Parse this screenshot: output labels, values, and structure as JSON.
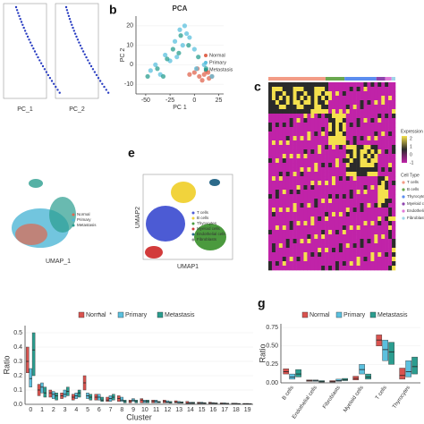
{
  "panel_labels": [
    "b",
    "c",
    "e",
    "g"
  ],
  "loadings": {
    "xlabels": [
      "PC_1",
      "PC_2"
    ]
  },
  "umap_left": {
    "xlabel": "UMAP_1",
    "legend": [
      "Normal",
      "Primary",
      "Metastasis"
    ]
  },
  "umap_right": {
    "xlabel": "UMAP1",
    "ylabel": "UMAP2",
    "legend": [
      "T cells",
      "B cells",
      "Thyrocytes",
      "Myeloid cells",
      "Endothelial cells",
      "Fibroblasts"
    ]
  },
  "heatmap": {
    "legend_title": "Expression",
    "scale": [
      2,
      1,
      0,
      -1
    ],
    "group_title": "Cell Type",
    "groups": [
      "T cells",
      "B cells",
      "Thyrocytes",
      "Myeloid cells",
      "Endothelial cells",
      "Fibroblasts"
    ]
  },
  "chart_data": [
    {
      "type": "scatter",
      "title": "PCA",
      "xlabel": "PC 1",
      "ylabel": "PC 2",
      "xlim": [
        -60,
        30
      ],
      "ylim": [
        -15,
        25
      ],
      "xticks": [
        -50,
        -25,
        0,
        25
      ],
      "yticks": [
        -10,
        0,
        10,
        20
      ],
      "series": [
        {
          "name": "Normal",
          "color": "#e0664f",
          "x": [
            5,
            10,
            15,
            0,
            12,
            8,
            18,
            -5,
            3,
            14
          ],
          "y": [
            -6,
            -5,
            -7,
            -4,
            -3,
            -8,
            -6,
            -5,
            -2,
            -4
          ]
        },
        {
          "name": "Primary",
          "color": "#5bc0de",
          "x": [
            -45,
            -40,
            -30,
            -20,
            -15,
            -10,
            -5,
            0,
            10,
            18,
            -25,
            -35,
            -12,
            -18,
            2,
            -8
          ],
          "y": [
            -3,
            0,
            5,
            12,
            18,
            20,
            14,
            8,
            0,
            -6,
            2,
            -5,
            10,
            4,
            -2,
            16
          ]
        },
        {
          "name": "Metastasis",
          "color": "#2a9d8f",
          "x": [
            -48,
            -38,
            -28,
            -22,
            -14,
            -6,
            4,
            12,
            -32,
            -16
          ],
          "y": [
            -6,
            -2,
            3,
            8,
            15,
            10,
            4,
            -2,
            -6,
            6
          ]
        }
      ]
    },
    {
      "type": "box",
      "xlabel": "Cluster",
      "ylabel": "Ratio",
      "annotations": [
        "*",
        "*"
      ],
      "categories": [
        "0",
        "1",
        "2",
        "3",
        "4",
        "5",
        "6",
        "7",
        "8",
        "9",
        "10",
        "11",
        "12",
        "13",
        "14",
        "15",
        "16",
        "17",
        "18",
        "19"
      ],
      "ylim": [
        0,
        0.55
      ],
      "yticks": [
        {
          "value": 0,
          "label": "0.0"
        },
        0.1,
        0.2,
        0.3,
        0.4,
        0.5
      ],
      "series": [
        {
          "name": "Normal",
          "color": "#d9534f",
          "q1": [
            0.22,
            0.06,
            0.05,
            0.04,
            0.03,
            0.1,
            0.03,
            0.02,
            0.02,
            0.01,
            0.01,
            0.01,
            0.01,
            0.01,
            0.005,
            0.005,
            0.005,
            0.003,
            0.003,
            0.002
          ],
          "median": [
            0.3,
            0.1,
            0.08,
            0.06,
            0.05,
            0.15,
            0.05,
            0.03,
            0.04,
            0.02,
            0.03,
            0.02,
            0.02,
            0.015,
            0.01,
            0.01,
            0.01,
            0.006,
            0.005,
            0.004
          ],
          "q3": [
            0.4,
            0.14,
            0.1,
            0.08,
            0.07,
            0.2,
            0.07,
            0.05,
            0.06,
            0.03,
            0.04,
            0.03,
            0.03,
            0.025,
            0.02,
            0.015,
            0.015,
            0.01,
            0.008,
            0.006
          ]
        },
        {
          "name": "Primary",
          "color": "#5bc0de",
          "q1": [
            0.12,
            0.08,
            0.04,
            0.05,
            0.04,
            0.04,
            0.03,
            0.02,
            0.02,
            0.02,
            0.01,
            0.01,
            0.01,
            0.008,
            0.005,
            0.005,
            0.005,
            0.003,
            0.003,
            0.002
          ],
          "median": [
            0.18,
            0.12,
            0.07,
            0.07,
            0.06,
            0.06,
            0.05,
            0.04,
            0.03,
            0.03,
            0.02,
            0.02,
            0.015,
            0.012,
            0.01,
            0.01,
            0.008,
            0.006,
            0.005,
            0.004
          ],
          "q3": [
            0.25,
            0.15,
            0.09,
            0.1,
            0.08,
            0.08,
            0.07,
            0.06,
            0.05,
            0.04,
            0.03,
            0.03,
            0.025,
            0.02,
            0.015,
            0.015,
            0.012,
            0.01,
            0.008,
            0.006
          ]
        },
        {
          "name": "Metastasis",
          "color": "#2a9d8f",
          "q1": [
            0.2,
            0.05,
            0.03,
            0.06,
            0.05,
            0.03,
            0.02,
            0.03,
            0.01,
            0.01,
            0.01,
            0.01,
            0.008,
            0.008,
            0.005,
            0.005,
            0.004,
            0.003,
            0.002,
            0.002
          ],
          "median": [
            0.38,
            0.08,
            0.06,
            0.09,
            0.08,
            0.05,
            0.03,
            0.05,
            0.02,
            0.02,
            0.02,
            0.015,
            0.012,
            0.012,
            0.01,
            0.008,
            0.007,
            0.005,
            0.004,
            0.003
          ],
          "q3": [
            0.5,
            0.12,
            0.08,
            0.12,
            0.1,
            0.07,
            0.05,
            0.07,
            0.03,
            0.03,
            0.03,
            0.02,
            0.02,
            0.018,
            0.015,
            0.012,
            0.01,
            0.008,
            0.006,
            0.005
          ]
        }
      ]
    },
    {
      "type": "box",
      "ylabel": "Ratio",
      "categories": [
        "B cells",
        "Endothelial cells",
        "Fibroblasts",
        "Myeloid cells",
        "T cells",
        "Thyrocytes"
      ],
      "ylim": [
        0,
        0.8
      ],
      "yticks": [
        {
          "value": 0,
          "label": "0.00"
        },
        0.25,
        {
          "value": 0.5,
          "label": "0.50"
        },
        0.75
      ],
      "series": [
        {
          "name": "Normal",
          "color": "#d9534f",
          "q1": [
            0.12,
            0.02,
            0.01,
            0.04,
            0.5,
            0.05
          ],
          "median": [
            0.15,
            0.03,
            0.02,
            0.06,
            0.58,
            0.1
          ],
          "q3": [
            0.19,
            0.04,
            0.03,
            0.09,
            0.65,
            0.2
          ]
        },
        {
          "name": "Primary",
          "color": "#5bc0de",
          "q1": [
            0.05,
            0.02,
            0.02,
            0.12,
            0.3,
            0.08
          ],
          "median": [
            0.08,
            0.03,
            0.03,
            0.18,
            0.45,
            0.15
          ],
          "q3": [
            0.12,
            0.04,
            0.05,
            0.25,
            0.58,
            0.3
          ]
        },
        {
          "name": "Metastasis",
          "color": "#2a9d8f",
          "q1": [
            0.08,
            0.01,
            0.03,
            0.05,
            0.25,
            0.12
          ],
          "median": [
            0.12,
            0.02,
            0.04,
            0.08,
            0.42,
            0.22
          ],
          "q3": [
            0.18,
            0.03,
            0.06,
            0.12,
            0.55,
            0.35
          ]
        }
      ]
    }
  ]
}
